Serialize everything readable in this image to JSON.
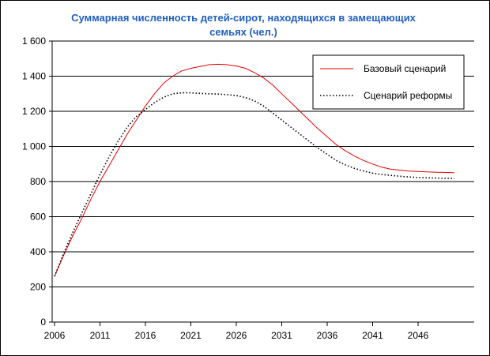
{
  "chart_data": {
    "type": "line",
    "title_lines": [
      "Суммарная численность детей-сирот, находящихся в замещающих",
      "семьях (чел.)"
    ],
    "xlabel": "",
    "ylabel": "",
    "xlim": [
      2006,
      2050
    ],
    "ylim": [
      0,
      1600
    ],
    "x_ticks": [
      2006,
      2011,
      2016,
      2021,
      2026,
      2031,
      2036,
      2041,
      2046
    ],
    "y_ticks": [
      {
        "value": 0,
        "label": "0"
      },
      {
        "value": 200,
        "label": "200"
      },
      {
        "value": 400,
        "label": "400"
      },
      {
        "value": 600,
        "label": "600"
      },
      {
        "value": 800,
        "label": "800"
      },
      {
        "value": 1000,
        "label": "1 000"
      },
      {
        "value": 1200,
        "label": "1 200"
      },
      {
        "value": 1400,
        "label": "1 400"
      },
      {
        "value": 1600,
        "label": "1 600"
      }
    ],
    "grid": "horizontal",
    "legend_position": "top-right",
    "series": [
      {
        "name": "Базовый сценарий",
        "color": "#e00000",
        "style": "solid",
        "x": [
          2006,
          2007,
          2008,
          2009,
          2010,
          2011,
          2012,
          2013,
          2014,
          2015,
          2016,
          2017,
          2018,
          2019,
          2020,
          2021,
          2022,
          2023,
          2024,
          2025,
          2026,
          2027,
          2028,
          2029,
          2030,
          2031,
          2032,
          2033,
          2034,
          2035,
          2036,
          2037,
          2038,
          2039,
          2040,
          2041,
          2042,
          2043,
          2044,
          2045,
          2046,
          2047,
          2048,
          2049,
          2050
        ],
        "values": [
          260,
          380,
          490,
          590,
          700,
          800,
          890,
          980,
          1070,
          1150,
          1230,
          1300,
          1360,
          1400,
          1430,
          1445,
          1455,
          1465,
          1468,
          1465,
          1458,
          1445,
          1420,
          1390,
          1350,
          1300,
          1250,
          1200,
          1150,
          1100,
          1055,
          1010,
          975,
          945,
          920,
          900,
          882,
          870,
          865,
          860,
          857,
          855,
          853,
          852,
          850
        ]
      },
      {
        "name": "Сценарий реформы",
        "color": "#000000",
        "style": "dotted",
        "x": [
          2006,
          2007,
          2008,
          2009,
          2010,
          2011,
          2012,
          2013,
          2014,
          2015,
          2016,
          2017,
          2018,
          2019,
          2020,
          2021,
          2022,
          2023,
          2024,
          2025,
          2026,
          2027,
          2028,
          2029,
          2030,
          2031,
          2032,
          2033,
          2034,
          2035,
          2036,
          2037,
          2038,
          2039,
          2040,
          2041,
          2042,
          2043,
          2044,
          2045,
          2046,
          2047,
          2048,
          2049,
          2050
        ],
        "values": [
          260,
          390,
          510,
          620,
          730,
          840,
          940,
          1030,
          1110,
          1170,
          1210,
          1250,
          1280,
          1300,
          1305,
          1305,
          1302,
          1300,
          1298,
          1295,
          1290,
          1278,
          1260,
          1230,
          1190,
          1150,
          1110,
          1070,
          1030,
          990,
          955,
          920,
          895,
          875,
          860,
          848,
          840,
          835,
          830,
          826,
          823,
          821,
          820,
          819,
          818
        ]
      }
    ]
  }
}
